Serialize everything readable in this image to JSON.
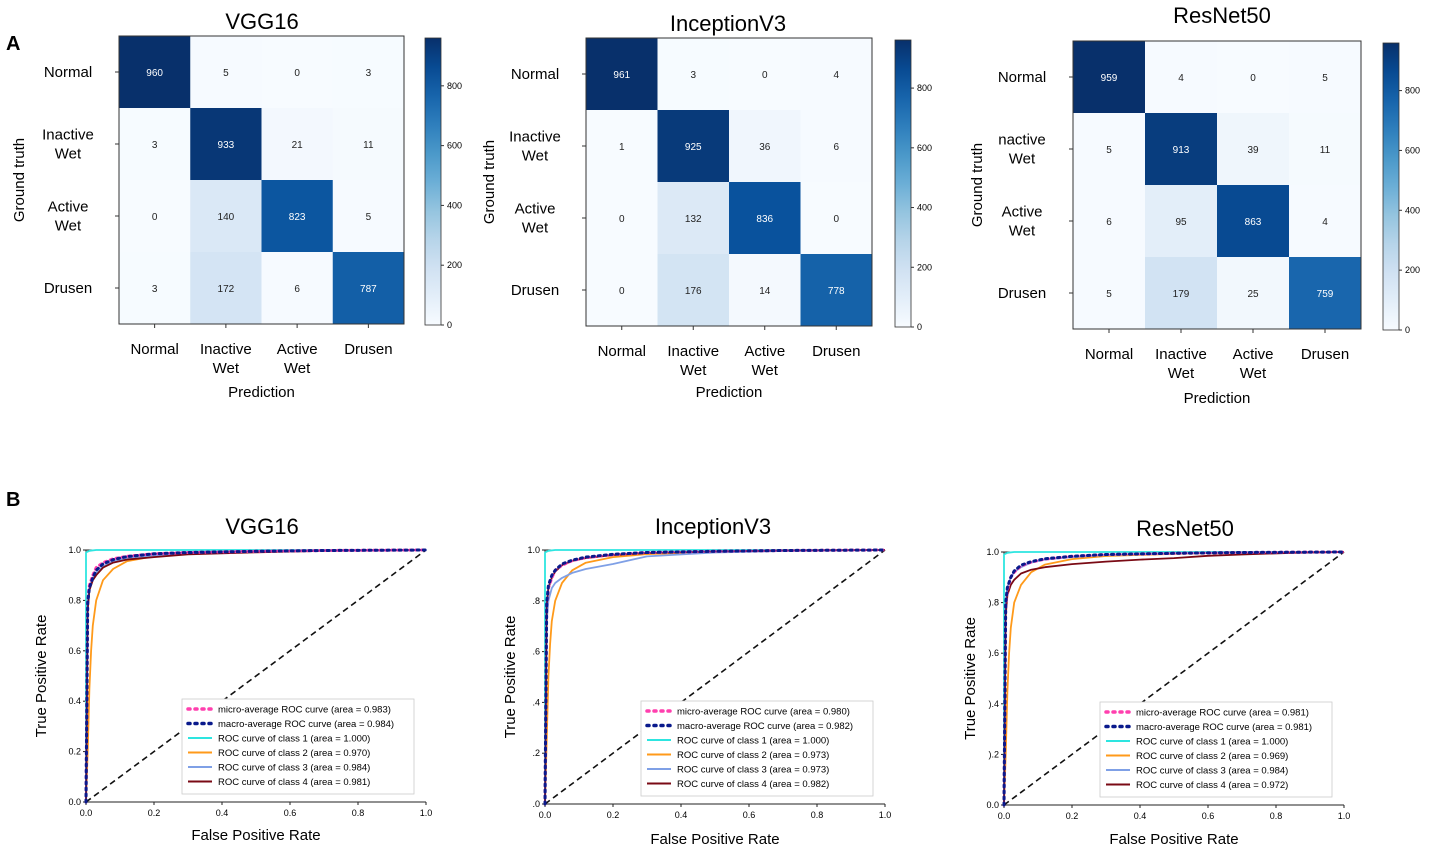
{
  "panel_labels": [
    "A",
    "B"
  ],
  "chart_data": [
    {
      "type": "heatmap",
      "title": "VGG16",
      "xlabel": "Prediction",
      "ylabel": "Ground truth",
      "x_categories": [
        [
          "Normal"
        ],
        [
          "Inactive",
          "Wet"
        ],
        [
          "Active",
          "Wet"
        ],
        [
          "Drusen"
        ]
      ],
      "y_categories": [
        [
          "Normal"
        ],
        [
          "Inactive",
          "Wet"
        ],
        [
          "Active",
          "Wet"
        ],
        [
          "Drusen"
        ]
      ],
      "values": [
        [
          960,
          5,
          0,
          3
        ],
        [
          3,
          933,
          21,
          11
        ],
        [
          0,
          140,
          823,
          5
        ],
        [
          3,
          172,
          6,
          787
        ]
      ],
      "colorbar": {
        "min": 0,
        "max": 960,
        "ticks": [
          "0",
          "200",
          "400",
          "600",
          "800"
        ],
        "cmap": "Blues"
      }
    },
    {
      "type": "heatmap",
      "title": "InceptionV3",
      "xlabel": "Prediction",
      "ylabel": "Ground truth",
      "x_categories": [
        [
          "Normal"
        ],
        [
          "Inactive",
          "Wet"
        ],
        [
          "Active",
          "Wet"
        ],
        [
          "Drusen"
        ]
      ],
      "y_categories": [
        [
          "Normal"
        ],
        [
          "Inactive",
          "Wet"
        ],
        [
          "Active",
          "Wet"
        ],
        [
          "Drusen"
        ]
      ],
      "values": [
        [
          961,
          3,
          0,
          4
        ],
        [
          1,
          925,
          36,
          6
        ],
        [
          0,
          132,
          836,
          0
        ],
        [
          0,
          176,
          14,
          778
        ]
      ],
      "colorbar": {
        "min": 0,
        "max": 961,
        "ticks": [
          "0",
          "200",
          "400",
          "600",
          "800"
        ],
        "cmap": "Blues"
      }
    },
    {
      "type": "heatmap",
      "title": "ResNet50",
      "xlabel": "Prediction",
      "ylabel": "Ground truth",
      "x_categories": [
        [
          "Normal"
        ],
        [
          "Inactive",
          "Wet"
        ],
        [
          "Active",
          "Wet"
        ],
        [
          "Drusen"
        ]
      ],
      "y_categories": [
        [
          "Normal"
        ],
        [
          "nactive",
          "Wet"
        ],
        [
          "Active",
          "Wet"
        ],
        [
          "Drusen"
        ]
      ],
      "values": [
        [
          959,
          4,
          0,
          5
        ],
        [
          5,
          913,
          39,
          11
        ],
        [
          6,
          95,
          863,
          4
        ],
        [
          5,
          179,
          25,
          759
        ]
      ],
      "colorbar": {
        "min": 0,
        "max": 959,
        "ticks": [
          "0",
          "200",
          "400",
          "600",
          "800"
        ],
        "cmap": "Blues"
      }
    },
    {
      "type": "line",
      "title": "VGG16",
      "xlabel": "False Positive Rate",
      "ylabel": "True Positive Rate",
      "xlim": [
        0,
        1
      ],
      "ylim": [
        0,
        1.0
      ],
      "xticks": [
        "0.0",
        "0.2",
        "0.4",
        "0.6",
        "0.8",
        "1.0"
      ],
      "yticks": [
        "0.0",
        "0.2",
        "0.4",
        "0.6",
        "0.8",
        "1.0"
      ],
      "legend_position": "lower-right",
      "diagonal": true,
      "series": [
        {
          "name": "micro-average ROC curve (area = 0.983)",
          "color": "#ff3fae",
          "dash": "dot",
          "x": [
            0,
            0.005,
            0.01,
            0.02,
            0.03,
            0.05,
            0.08,
            0.12,
            0.2,
            0.3,
            0.5,
            0.7,
            1
          ],
          "y": [
            0,
            0.8,
            0.86,
            0.9,
            0.93,
            0.95,
            0.965,
            0.975,
            0.985,
            0.99,
            0.995,
            0.998,
            1
          ]
        },
        {
          "name": "macro-average ROC curve (area = 0.984)",
          "color": "#0a1a8c",
          "dash": "dot",
          "x": [
            0,
            0.005,
            0.01,
            0.02,
            0.03,
            0.05,
            0.08,
            0.12,
            0.2,
            0.3,
            0.5,
            0.7,
            1
          ],
          "y": [
            0,
            0.79,
            0.85,
            0.89,
            0.92,
            0.945,
            0.962,
            0.974,
            0.985,
            0.99,
            0.995,
            0.998,
            1
          ]
        },
        {
          "name": "ROC curve of class 1 (area = 1.000)",
          "color": "#2de5e0",
          "dash": "solid",
          "x": [
            0,
            0.0,
            0.01,
            0.03,
            1
          ],
          "y": [
            0,
            0.99,
            0.997,
            1,
            1
          ]
        },
        {
          "name": "ROC curve of class 2 (area = 0.970)",
          "color": "#ff9a1a",
          "dash": "solid",
          "x": [
            0,
            0.005,
            0.01,
            0.015,
            0.02,
            0.03,
            0.05,
            0.08,
            0.12,
            0.2,
            0.3,
            0.5,
            0.7,
            1
          ],
          "y": [
            0,
            0.2,
            0.45,
            0.6,
            0.7,
            0.8,
            0.88,
            0.925,
            0.955,
            0.975,
            0.985,
            0.993,
            0.998,
            1
          ]
        },
        {
          "name": "ROC curve of class 3 (area = 0.984)",
          "color": "#7fa0e6",
          "dash": "solid",
          "x": [
            0,
            0.005,
            0.01,
            0.02,
            0.03,
            0.05,
            0.08,
            0.12,
            0.2,
            0.3,
            0.5,
            0.7,
            1
          ],
          "y": [
            0,
            0.78,
            0.85,
            0.89,
            0.91,
            0.935,
            0.955,
            0.968,
            0.978,
            0.987,
            0.994,
            0.998,
            1
          ]
        },
        {
          "name": "ROC curve of class 4 (area = 0.981)",
          "color": "#7a0a14",
          "dash": "solid",
          "x": [
            0,
            0.005,
            0.01,
            0.02,
            0.03,
            0.05,
            0.08,
            0.12,
            0.2,
            0.3,
            0.5,
            0.7,
            1
          ],
          "y": [
            0,
            0.76,
            0.84,
            0.88,
            0.9,
            0.93,
            0.95,
            0.962,
            0.972,
            0.983,
            0.991,
            0.997,
            1
          ]
        }
      ]
    },
    {
      "type": "line",
      "title": "InceptionV3",
      "xlabel": "False Positive Rate",
      "ylabel": "True Positive Rate",
      "xlim": [
        0,
        1
      ],
      "ylim": [
        0,
        1.0
      ],
      "xticks": [
        "0.0",
        "0.2",
        "0.4",
        "0.6",
        "0.8",
        "1.0"
      ],
      "yticks": [
        ".0",
        ".2",
        ".4",
        ".6",
        ".8",
        "1.0"
      ],
      "legend_position": "lower-right",
      "diagonal": true,
      "series": [
        {
          "name": "micro-average ROC curve (area = 0.980)",
          "color": "#ff3fae",
          "dash": "dot",
          "x": [
            0,
            0.005,
            0.01,
            0.02,
            0.03,
            0.05,
            0.08,
            0.12,
            0.2,
            0.3,
            0.5,
            0.7,
            1
          ],
          "y": [
            0,
            0.78,
            0.85,
            0.89,
            0.92,
            0.94,
            0.958,
            0.97,
            0.982,
            0.99,
            0.995,
            0.998,
            1
          ]
        },
        {
          "name": "macro-average ROC curve (area = 0.982)",
          "color": "#0a1a8c",
          "dash": "dot",
          "x": [
            0,
            0.005,
            0.01,
            0.02,
            0.03,
            0.05,
            0.08,
            0.12,
            0.2,
            0.3,
            0.5,
            0.7,
            1
          ],
          "y": [
            0,
            0.79,
            0.86,
            0.9,
            0.92,
            0.945,
            0.96,
            0.972,
            0.983,
            0.99,
            0.995,
            0.998,
            1
          ]
        },
        {
          "name": "ROC curve of class 1 (area = 1.000)",
          "color": "#2de5e0",
          "dash": "solid",
          "x": [
            0,
            0.0,
            0.01,
            0.03,
            1
          ],
          "y": [
            0,
            0.99,
            0.997,
            1,
            1
          ]
        },
        {
          "name": "ROC curve of class 2 (area = 0.973)",
          "color": "#ff9a1a",
          "dash": "solid",
          "x": [
            0,
            0.005,
            0.01,
            0.015,
            0.02,
            0.03,
            0.05,
            0.08,
            0.12,
            0.2,
            0.3,
            0.5,
            0.7,
            1
          ],
          "y": [
            0,
            0.25,
            0.5,
            0.63,
            0.72,
            0.8,
            0.87,
            0.92,
            0.95,
            0.972,
            0.984,
            0.993,
            0.998,
            1
          ]
        },
        {
          "name": "ROC curve of class 3 (area = 0.973)",
          "color": "#7fa0e6",
          "dash": "solid",
          "x": [
            0,
            0.005,
            0.01,
            0.02,
            0.03,
            0.05,
            0.08,
            0.12,
            0.2,
            0.3,
            0.5,
            0.7,
            1
          ],
          "y": [
            0,
            0.72,
            0.8,
            0.85,
            0.87,
            0.89,
            0.91,
            0.925,
            0.945,
            0.975,
            0.99,
            0.996,
            1
          ]
        },
        {
          "name": "ROC curve of class 4 (area = 0.982)",
          "color": "#7a0a14",
          "dash": "solid",
          "x": [
            0,
            0.005,
            0.01,
            0.02,
            0.03,
            0.05,
            0.08,
            0.12,
            0.2,
            0.3,
            0.5,
            0.7,
            1
          ],
          "y": [
            0,
            0.78,
            0.85,
            0.89,
            0.915,
            0.94,
            0.957,
            0.968,
            0.98,
            0.988,
            0.994,
            0.998,
            1
          ]
        }
      ]
    },
    {
      "type": "line",
      "title": "ResNet50",
      "xlabel": "False Positive Rate",
      "ylabel": "True Positive Rate",
      "xlim": [
        0,
        1
      ],
      "ylim": [
        0,
        1.0
      ],
      "xticks": [
        "0.0",
        "0.2",
        "0.4",
        "0.6",
        "0.8",
        "1.0"
      ],
      "yticks": [
        "0.0",
        ").2",
        ").4",
        ").6",
        ").8",
        "1.0"
      ],
      "legend_position": "lower-right",
      "diagonal": true,
      "series": [
        {
          "name": "micro-average ROC curve (area = 0.981)",
          "color": "#ff3fae",
          "dash": "dot",
          "x": [
            0,
            0.005,
            0.01,
            0.02,
            0.03,
            0.05,
            0.08,
            0.12,
            0.2,
            0.3,
            0.5,
            0.7,
            1
          ],
          "y": [
            0,
            0.79,
            0.85,
            0.9,
            0.92,
            0.945,
            0.96,
            0.972,
            0.983,
            0.99,
            0.995,
            0.998,
            1
          ]
        },
        {
          "name": "macro-average ROC curve (area = 0.981)",
          "color": "#0a1a8c",
          "dash": "dot",
          "x": [
            0,
            0.005,
            0.01,
            0.02,
            0.03,
            0.05,
            0.08,
            0.12,
            0.2,
            0.3,
            0.5,
            0.7,
            1
          ],
          "y": [
            0,
            0.8,
            0.86,
            0.9,
            0.925,
            0.948,
            0.962,
            0.973,
            0.983,
            0.99,
            0.995,
            0.998,
            1
          ]
        },
        {
          "name": "ROC curve of class 1 (area = 1.000)",
          "color": "#2de5e0",
          "dash": "solid",
          "x": [
            0,
            0.0,
            0.01,
            0.03,
            1
          ],
          "y": [
            0,
            0.99,
            0.997,
            1,
            1
          ]
        },
        {
          "name": "ROC curve of class 2 (area = 0.969)",
          "color": "#ff9a1a",
          "dash": "solid",
          "x": [
            0,
            0.005,
            0.01,
            0.015,
            0.02,
            0.03,
            0.05,
            0.08,
            0.12,
            0.2,
            0.3,
            0.5,
            0.7,
            1
          ],
          "y": [
            0,
            0.2,
            0.45,
            0.6,
            0.7,
            0.8,
            0.87,
            0.92,
            0.95,
            0.972,
            0.984,
            0.993,
            0.998,
            1
          ]
        },
        {
          "name": "ROC curve of class 3 (area = 0.984)",
          "color": "#7fa0e6",
          "dash": "solid",
          "x": [
            0,
            0.005,
            0.01,
            0.02,
            0.03,
            0.05,
            0.08,
            0.12,
            0.2,
            0.3,
            0.5,
            0.7,
            1
          ],
          "y": [
            0,
            0.79,
            0.86,
            0.9,
            0.92,
            0.94,
            0.958,
            0.97,
            0.98,
            0.988,
            0.994,
            0.998,
            1
          ]
        },
        {
          "name": "ROC curve of class 4 (area = 0.972)",
          "color": "#7a0a14",
          "dash": "solid",
          "x": [
            0,
            0.005,
            0.01,
            0.02,
            0.03,
            0.05,
            0.08,
            0.12,
            0.2,
            0.3,
            0.4,
            0.5,
            0.6,
            0.7,
            0.85,
            1
          ],
          "y": [
            0,
            0.75,
            0.83,
            0.87,
            0.89,
            0.915,
            0.93,
            0.94,
            0.952,
            0.962,
            0.97,
            0.976,
            0.985,
            0.99,
            0.997,
            1
          ]
        }
      ]
    }
  ]
}
